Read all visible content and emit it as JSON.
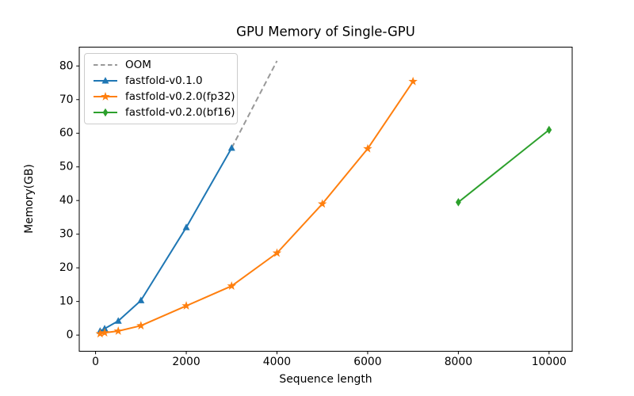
{
  "chart_data": {
    "type": "line",
    "title": "GPU Memory of Single-GPU",
    "xlabel": "Sequence length",
    "ylabel": "Memory(GB)",
    "xticks": [
      0,
      2000,
      4000,
      6000,
      8000,
      10000
    ],
    "yticks": [
      0,
      10,
      20,
      30,
      40,
      50,
      60,
      70,
      80
    ],
    "xlim": [
      -360,
      10510
    ],
    "ylim": [
      -4.8,
      85.6
    ],
    "grid": false,
    "legend_position": "upper left",
    "series": [
      {
        "name": "OOM",
        "color": "#999999",
        "style": "dashed",
        "marker": "none",
        "x": [
          3000,
          4000
        ],
        "y": [
          55.6,
          81.5
        ]
      },
      {
        "name": "fastfold-v0.1.0",
        "color": "#1f77b4",
        "style": "solid",
        "marker": "triangle",
        "x": [
          100,
          200,
          500,
          1000,
          2000,
          3000
        ],
        "y": [
          1.2,
          1.9,
          4.2,
          10.3,
          32.0,
          55.6
        ]
      },
      {
        "name": "fastfold-v0.2.0(fp32)",
        "color": "#ff7f0e",
        "style": "solid",
        "marker": "star",
        "x": [
          100,
          200,
          500,
          1000,
          2000,
          3000,
          4000,
          5000,
          6000,
          7000
        ],
        "y": [
          0.4,
          0.7,
          1.2,
          2.8,
          8.7,
          14.6,
          24.4,
          39.0,
          55.4,
          75.4
        ]
      },
      {
        "name": "fastfold-v0.2.0(bf16)",
        "color": "#2ca02c",
        "style": "solid",
        "marker": "diamond",
        "x": [
          8000,
          10000
        ],
        "y": [
          39.5,
          61.0
        ]
      }
    ]
  }
}
